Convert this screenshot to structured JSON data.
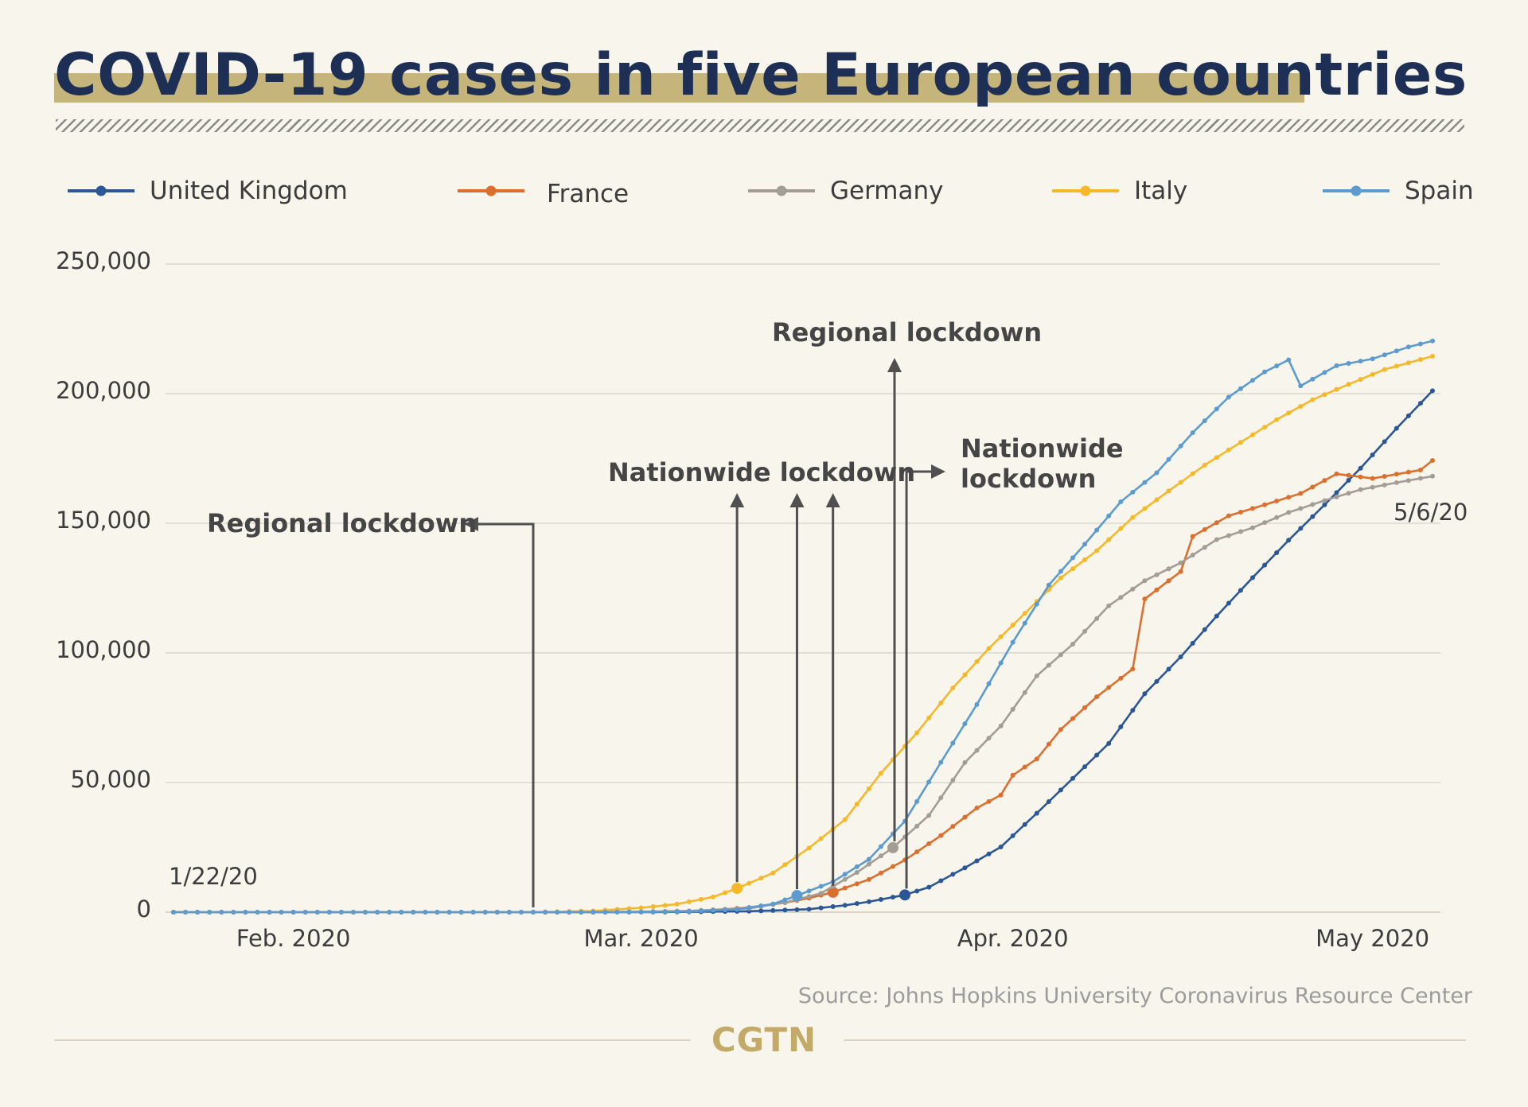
{
  "title": "COVID-19 cases in five European countries",
  "source": "Source: Johns Hopkins University Coronavirus Resource Center",
  "brand": "CGTN",
  "colors": {
    "background": "#f8f5ec",
    "title_text": "#1d2f54",
    "title_band": "#c6b57b",
    "grid": "#dcd8cc",
    "annotation": "#505050"
  },
  "chart_data": {
    "type": "line",
    "title": "COVID-19 cases in five European countries",
    "xlabel": "",
    "ylabel": "",
    "x_start": "2020-01-22",
    "x_end": "2020-05-06",
    "x_ticks": [
      {
        "date": "2020-02-01",
        "label": "Feb. 2020"
      },
      {
        "date": "2020-03-01",
        "label": "Mar. 2020"
      },
      {
        "date": "2020-04-01",
        "label": "Apr. 2020"
      },
      {
        "date": "2020-05-01",
        "label": "May 2020"
      }
    ],
    "ylim": [
      0,
      250000
    ],
    "y_ticks": [
      {
        "value": 0,
        "label": "0"
      },
      {
        "value": 50000,
        "label": "50,000"
      },
      {
        "value": 100000,
        "label": "100,000"
      },
      {
        "value": 150000,
        "label": "150,000"
      },
      {
        "value": 200000,
        "label": "200,000"
      },
      {
        "value": 250000,
        "label": "250,000"
      }
    ],
    "grid": true,
    "legend_position": "top",
    "start_label": "1/22/20",
    "end_label": "5/6/20",
    "series": [
      {
        "name": "United Kingdom",
        "color": "#2b5797",
        "points": [
          [
            "2020-01-22",
            0
          ],
          [
            "2020-02-20",
            9
          ],
          [
            "2020-02-28",
            20
          ],
          [
            "2020-03-03",
            51
          ],
          [
            "2020-03-05",
            116
          ],
          [
            "2020-03-10",
            373
          ],
          [
            "2020-03-13",
            798
          ],
          [
            "2020-03-15",
            1144
          ],
          [
            "2020-03-18",
            2642
          ],
          [
            "2020-03-20",
            4014
          ],
          [
            "2020-03-23",
            6650
          ],
          [
            "2020-03-25",
            9640
          ],
          [
            "2020-03-28",
            17089
          ],
          [
            "2020-03-31",
            25150
          ],
          [
            "2020-04-03",
            38168
          ],
          [
            "2020-04-06",
            51608
          ],
          [
            "2020-04-09",
            65077
          ],
          [
            "2020-04-12",
            84279
          ],
          [
            "2020-04-15",
            98476
          ],
          [
            "2020-04-18",
            114217
          ],
          [
            "2020-04-21",
            129044
          ],
          [
            "2020-04-24",
            143464
          ],
          [
            "2020-04-27",
            157149
          ],
          [
            "2020-04-30",
            171253
          ],
          [
            "2020-05-03",
            186599
          ],
          [
            "2020-05-06",
            201101
          ]
        ],
        "markers": [
          [
            "2020-03-23",
            6650
          ]
        ]
      },
      {
        "name": "France",
        "color": "#dc6f2e",
        "points": [
          [
            "2020-01-22",
            0
          ],
          [
            "2020-02-25",
            14
          ],
          [
            "2020-03-01",
            130
          ],
          [
            "2020-03-05",
            423
          ],
          [
            "2020-03-08",
            1126
          ],
          [
            "2020-03-10",
            1784
          ],
          [
            "2020-03-13",
            3661
          ],
          [
            "2020-03-15",
            5423
          ],
          [
            "2020-03-17",
            7699
          ],
          [
            "2020-03-20",
            12612
          ],
          [
            "2020-03-23",
            20123
          ],
          [
            "2020-03-26",
            29551
          ],
          [
            "2020-03-29",
            40174
          ],
          [
            "2020-03-31",
            45170
          ],
          [
            "2020-04-01",
            52827
          ],
          [
            "2020-04-03",
            59105
          ],
          [
            "2020-04-05",
            70478
          ],
          [
            "2020-04-08",
            83080
          ],
          [
            "2020-04-11",
            93790
          ],
          [
            "2020-04-12",
            120804
          ],
          [
            "2020-04-15",
            131361
          ],
          [
            "2020-04-16",
            144944
          ],
          [
            "2020-04-19",
            152894
          ],
          [
            "2020-04-22",
            157125
          ],
          [
            "2020-04-25",
            161488
          ],
          [
            "2020-04-28",
            169053
          ],
          [
            "2020-05-01",
            167299
          ],
          [
            "2020-05-05",
            170551
          ],
          [
            "2020-05-06",
            174224
          ]
        ],
        "markers": [
          [
            "2020-03-17",
            7699
          ]
        ]
      },
      {
        "name": "Germany",
        "color": "#a39d96",
        "points": [
          [
            "2020-01-22",
            0
          ],
          [
            "2020-02-25",
            16
          ],
          [
            "2020-03-01",
            130
          ],
          [
            "2020-03-05",
            482
          ],
          [
            "2020-03-10",
            1457
          ],
          [
            "2020-03-13",
            3675
          ],
          [
            "2020-03-16",
            7272
          ],
          [
            "2020-03-19",
            15320
          ],
          [
            "2020-03-22",
            24873
          ],
          [
            "2020-03-25",
            37323
          ],
          [
            "2020-03-28",
            57695
          ],
          [
            "2020-03-31",
            71808
          ],
          [
            "2020-04-03",
            91159
          ],
          [
            "2020-04-06",
            103374
          ],
          [
            "2020-04-09",
            118181
          ],
          [
            "2020-04-12",
            127854
          ],
          [
            "2020-04-15",
            134753
          ],
          [
            "2020-04-18",
            143724
          ],
          [
            "2020-04-21",
            148291
          ],
          [
            "2020-04-24",
            154175
          ],
          [
            "2020-04-27",
            158758
          ],
          [
            "2020-04-30",
            163009
          ],
          [
            "2020-05-03",
            165664
          ],
          [
            "2020-05-06",
            168162
          ]
        ],
        "markers": [
          [
            "2020-03-22",
            24873
          ]
        ]
      },
      {
        "name": "Italy",
        "color": "#f6b829",
        "points": [
          [
            "2020-01-22",
            0
          ],
          [
            "2020-02-21",
            20
          ],
          [
            "2020-02-26",
            453
          ],
          [
            "2020-03-01",
            1694
          ],
          [
            "2020-03-04",
            3089
          ],
          [
            "2020-03-07",
            5883
          ],
          [
            "2020-03-09",
            9172
          ],
          [
            "2020-03-12",
            15113
          ],
          [
            "2020-03-15",
            24747
          ],
          [
            "2020-03-18",
            35713
          ],
          [
            "2020-03-21",
            53578
          ],
          [
            "2020-03-24",
            69176
          ],
          [
            "2020-03-27",
            86498
          ],
          [
            "2020-03-30",
            101739
          ],
          [
            "2020-04-02",
            115242
          ],
          [
            "2020-04-05",
            128948
          ],
          [
            "2020-04-08",
            139422
          ],
          [
            "2020-04-11",
            152271
          ],
          [
            "2020-04-14",
            162488
          ],
          [
            "2020-04-17",
            172434
          ],
          [
            "2020-04-20",
            181228
          ],
          [
            "2020-04-23",
            189973
          ],
          [
            "2020-04-26",
            197675
          ],
          [
            "2020-04-29",
            203591
          ],
          [
            "2020-05-02",
            209328
          ],
          [
            "2020-05-06",
            214457
          ]
        ],
        "markers": [
          [
            "2020-03-09",
            9172
          ]
        ]
      },
      {
        "name": "Spain",
        "color": "#5b9bd0",
        "points": [
          [
            "2020-01-22",
            0
          ],
          [
            "2020-02-25",
            6
          ],
          [
            "2020-03-01",
            84
          ],
          [
            "2020-03-05",
            282
          ],
          [
            "2020-03-09",
            1073
          ],
          [
            "2020-03-12",
            3146
          ],
          [
            "2020-03-14",
            6391
          ],
          [
            "2020-03-17",
            11748
          ],
          [
            "2020-03-20",
            20410
          ],
          [
            "2020-03-23",
            35136
          ],
          [
            "2020-03-26",
            57786
          ],
          [
            "2020-03-29",
            80110
          ],
          [
            "2020-04-01",
            104118
          ],
          [
            "2020-04-04",
            126168
          ],
          [
            "2020-04-07",
            141942
          ],
          [
            "2020-04-10",
            158273
          ],
          [
            "2020-04-13",
            169496
          ],
          [
            "2020-04-16",
            184948
          ],
          [
            "2020-04-19",
            198674
          ],
          [
            "2020-04-22",
            208389
          ],
          [
            "2020-04-24",
            213024
          ],
          [
            "2020-04-25",
            202990
          ],
          [
            "2020-04-28",
            210773
          ],
          [
            "2020-05-01",
            213435
          ],
          [
            "2020-05-04",
            218011
          ],
          [
            "2020-05-06",
            220325
          ]
        ],
        "markers": [
          [
            "2020-03-14",
            6391
          ]
        ]
      }
    ],
    "annotations": [
      {
        "label": "Regional lockdown",
        "date": "2020-02-21",
        "value": 0,
        "direction": "left",
        "color": "#f6b829"
      },
      {
        "label": "Nationwide lockdown",
        "group": [
          "2020-03-09",
          "2020-03-14",
          "2020-03-17"
        ]
      },
      {
        "label": "Regional lockdown",
        "date": "2020-03-22",
        "value": 24873,
        "direction": "up",
        "color": "#a39d96"
      },
      {
        "label": "Nationwide lockdown",
        "date": "2020-03-23",
        "value": 6650,
        "direction": "right",
        "color": "#2b5797"
      }
    ]
  }
}
